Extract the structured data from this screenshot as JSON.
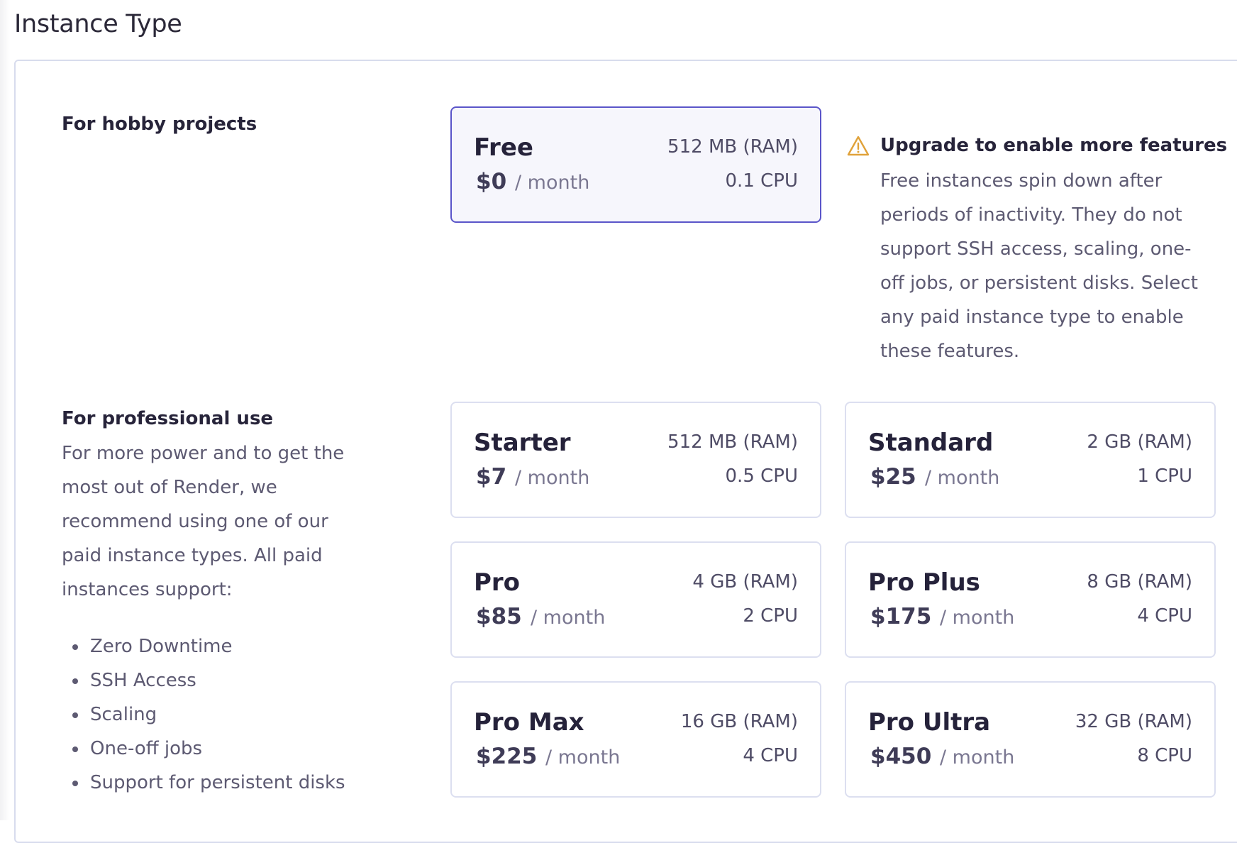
{
  "header": {
    "title": "Instance Type"
  },
  "hobby": {
    "heading": "For hobby projects",
    "plan": {
      "name": "Free",
      "price": "$0",
      "period": "/ month",
      "ram": "512 MB (RAM)",
      "cpu": "0.1 CPU"
    },
    "warning": {
      "title": "Upgrade to enable more features",
      "text": "Free instances spin down after periods of inactivity. They do not support SSH access, scaling, one-off jobs, or persistent disks. Select any paid instance type to enable these features."
    }
  },
  "professional": {
    "heading": "For professional use",
    "description": "For more power and to get the most out of Render, we recommend using one of our paid instance types. All paid instances support:",
    "features": [
      "Zero Downtime",
      "SSH Access",
      "Scaling",
      "One-off jobs",
      "Support for persistent disks"
    ],
    "plans": [
      {
        "name": "Starter",
        "price": "$7",
        "period": "/ month",
        "ram": "512 MB (RAM)",
        "cpu": "0.5 CPU"
      },
      {
        "name": "Standard",
        "price": "$25",
        "period": "/ month",
        "ram": "2 GB (RAM)",
        "cpu": "1 CPU"
      },
      {
        "name": "Pro",
        "price": "$85",
        "period": "/ month",
        "ram": "4 GB (RAM)",
        "cpu": "2 CPU"
      },
      {
        "name": "Pro Plus",
        "price": "$175",
        "period": "/ month",
        "ram": "8 GB (RAM)",
        "cpu": "4 CPU"
      },
      {
        "name": "Pro Max",
        "price": "$225",
        "period": "/ month",
        "ram": "16 GB (RAM)",
        "cpu": "4 CPU"
      },
      {
        "name": "Pro Ultra",
        "price": "$450",
        "period": "/ month",
        "ram": "32 GB (RAM)",
        "cpu": "8 CPU"
      }
    ]
  }
}
